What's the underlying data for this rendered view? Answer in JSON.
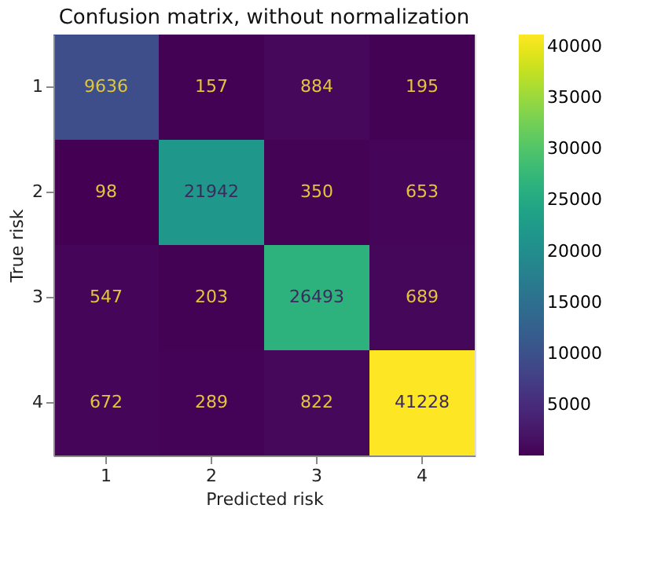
{
  "chart_data": {
    "type": "heatmap",
    "title": "Confusion matrix, without normalization",
    "xlabel": "Predicted risk",
    "ylabel": "True risk",
    "categories": [
      "1",
      "2",
      "3",
      "4"
    ],
    "y_categories": [
      "1",
      "2",
      "3",
      "4"
    ],
    "cells": [
      [
        9636,
        157,
        884,
        195
      ],
      [
        98,
        21942,
        350,
        653
      ],
      [
        547,
        203,
        26493,
        689
      ],
      [
        672,
        289,
        822,
        41228
      ]
    ],
    "data_labels": true,
    "clim": [
      98,
      41228
    ],
    "cticks": [
      5000,
      10000,
      15000,
      20000,
      25000,
      30000,
      35000,
      40000
    ]
  }
}
